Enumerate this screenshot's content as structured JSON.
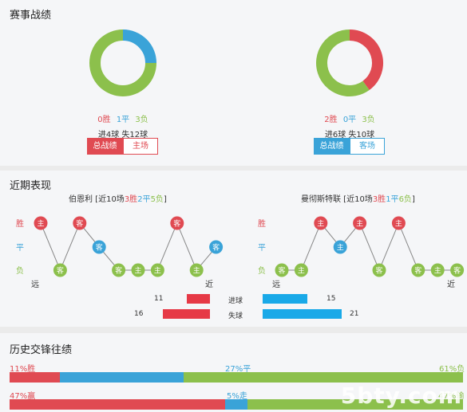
{
  "sections": {
    "record_title": "赛事战绩",
    "recent_title": "近期表现",
    "history_title": "历史交锋往绩"
  },
  "colors": {
    "win": "#e04a52",
    "draw": "#3aa3d8",
    "loss": "#8cc04c",
    "bar_red": "#e63946",
    "bar_blue": "#19a9e8"
  },
  "home": {
    "record": {
      "win": "0胜",
      "draw": "1平",
      "loss": "3负",
      "win_n": 0,
      "draw_n": 1,
      "loss_n": 3
    },
    "goals": "进4球 失12球",
    "tabs": [
      "总战绩",
      "主场"
    ],
    "caption_prefix": "伯恩利 [近10场",
    "caption_win": "3胜",
    "caption_draw": "2平",
    "caption_loss": "5负",
    "caption_suffix": "]",
    "form": [
      {
        "r": "W",
        "v": "主"
      },
      {
        "r": "L",
        "v": "客"
      },
      {
        "r": "W",
        "v": "客"
      },
      {
        "r": "D",
        "v": "客"
      },
      {
        "r": "L",
        "v": "客"
      },
      {
        "r": "L",
        "v": "主"
      },
      {
        "r": "L",
        "v": "主"
      },
      {
        "r": "W",
        "v": "客"
      },
      {
        "r": "L",
        "v": "主"
      },
      {
        "r": "D",
        "v": "客"
      }
    ]
  },
  "away": {
    "record": {
      "win": "2胜",
      "draw": "0平",
      "loss": "3负",
      "win_n": 2,
      "draw_n": 0,
      "loss_n": 3
    },
    "goals": "进6球 失10球",
    "tabs": [
      "总战绩",
      "客场"
    ],
    "caption_prefix": "曼彻斯特联 [近10场",
    "caption_win": "3胜",
    "caption_draw": "1平",
    "caption_loss": "6负",
    "caption_suffix": "]",
    "form": [
      {
        "r": "L",
        "v": "客"
      },
      {
        "r": "L",
        "v": "主"
      },
      {
        "r": "W",
        "v": "主"
      },
      {
        "r": "D",
        "v": "主"
      },
      {
        "r": "W",
        "v": "主"
      },
      {
        "r": "L",
        "v": "客"
      },
      {
        "r": "W",
        "v": "主"
      },
      {
        "r": "L",
        "v": "客"
      },
      {
        "r": "L",
        "v": "主"
      },
      {
        "r": "L",
        "v": "客"
      }
    ]
  },
  "axis": {
    "win": "胜",
    "draw": "平",
    "loss": "负",
    "far": "远",
    "near": "近"
  },
  "goals_compare": {
    "scored_label": "进球",
    "conceded_label": "失球",
    "home_scored": 11,
    "home_conceded": 16,
    "away_scored": 15,
    "away_conceded": 21
  },
  "history": {
    "row1": {
      "win": "11%胜",
      "draw": "27%平",
      "loss": "61%负",
      "win_pct": 11,
      "draw_pct": 27,
      "loss_pct": 61
    },
    "row2": {
      "win": "47%赢",
      "draw": "5%走",
      "loss": "47%输",
      "win_pct": 47,
      "draw_pct": 5,
      "loss_pct": 47
    }
  },
  "watermark": "5bty.com"
}
